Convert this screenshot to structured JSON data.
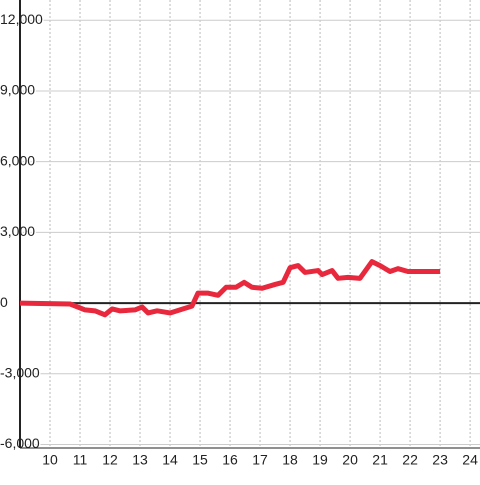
{
  "chart_data": {
    "type": "line",
    "x": [
      9,
      10.67,
      11.17,
      11.5,
      11.83,
      12.07,
      12.33,
      12.83,
      13.07,
      13.27,
      13.57,
      14,
      14.33,
      14.73,
      14.93,
      15.27,
      15.6,
      15.87,
      16.2,
      16.47,
      16.73,
      17.07,
      17.5,
      17.77,
      18,
      18.27,
      18.5,
      18.93,
      19.07,
      19.4,
      19.6,
      19.93,
      20.33,
      20.73,
      21,
      21.33,
      21.6,
      21.93,
      23
    ],
    "series": [
      {
        "color": "#e8283c",
        "values": [
          0,
          -40,
          -290,
          -330,
          -500,
          -250,
          -330,
          -290,
          -170,
          -420,
          -330,
          -420,
          -290,
          -130,
          420,
          420,
          330,
          670,
          670,
          880,
          670,
          630,
          790,
          880,
          1500,
          1590,
          1300,
          1380,
          1210,
          1380,
          1050,
          1090,
          1050,
          1760,
          1590,
          1340,
          1460,
          1340,
          1340
        ]
      }
    ],
    "xlim": [
      9,
      24.33
    ],
    "xticks": [
      10,
      11,
      12,
      13,
      14,
      15,
      16,
      17,
      18,
      19,
      20,
      21,
      22,
      23,
      24
    ],
    "ylim": [
      -6150,
      12860
    ],
    "yticks": [
      {
        "value": -6000,
        "label": "-6,000"
      },
      {
        "value": -3000,
        "label": "-3,000"
      },
      0,
      {
        "value": 3000,
        "label": "3,000"
      },
      {
        "value": 6000,
        "label": "6,000"
      },
      {
        "value": 9000,
        "label": "9,000"
      },
      {
        "value": 12000,
        "label": "12,000"
      }
    ],
    "grid": true
  }
}
